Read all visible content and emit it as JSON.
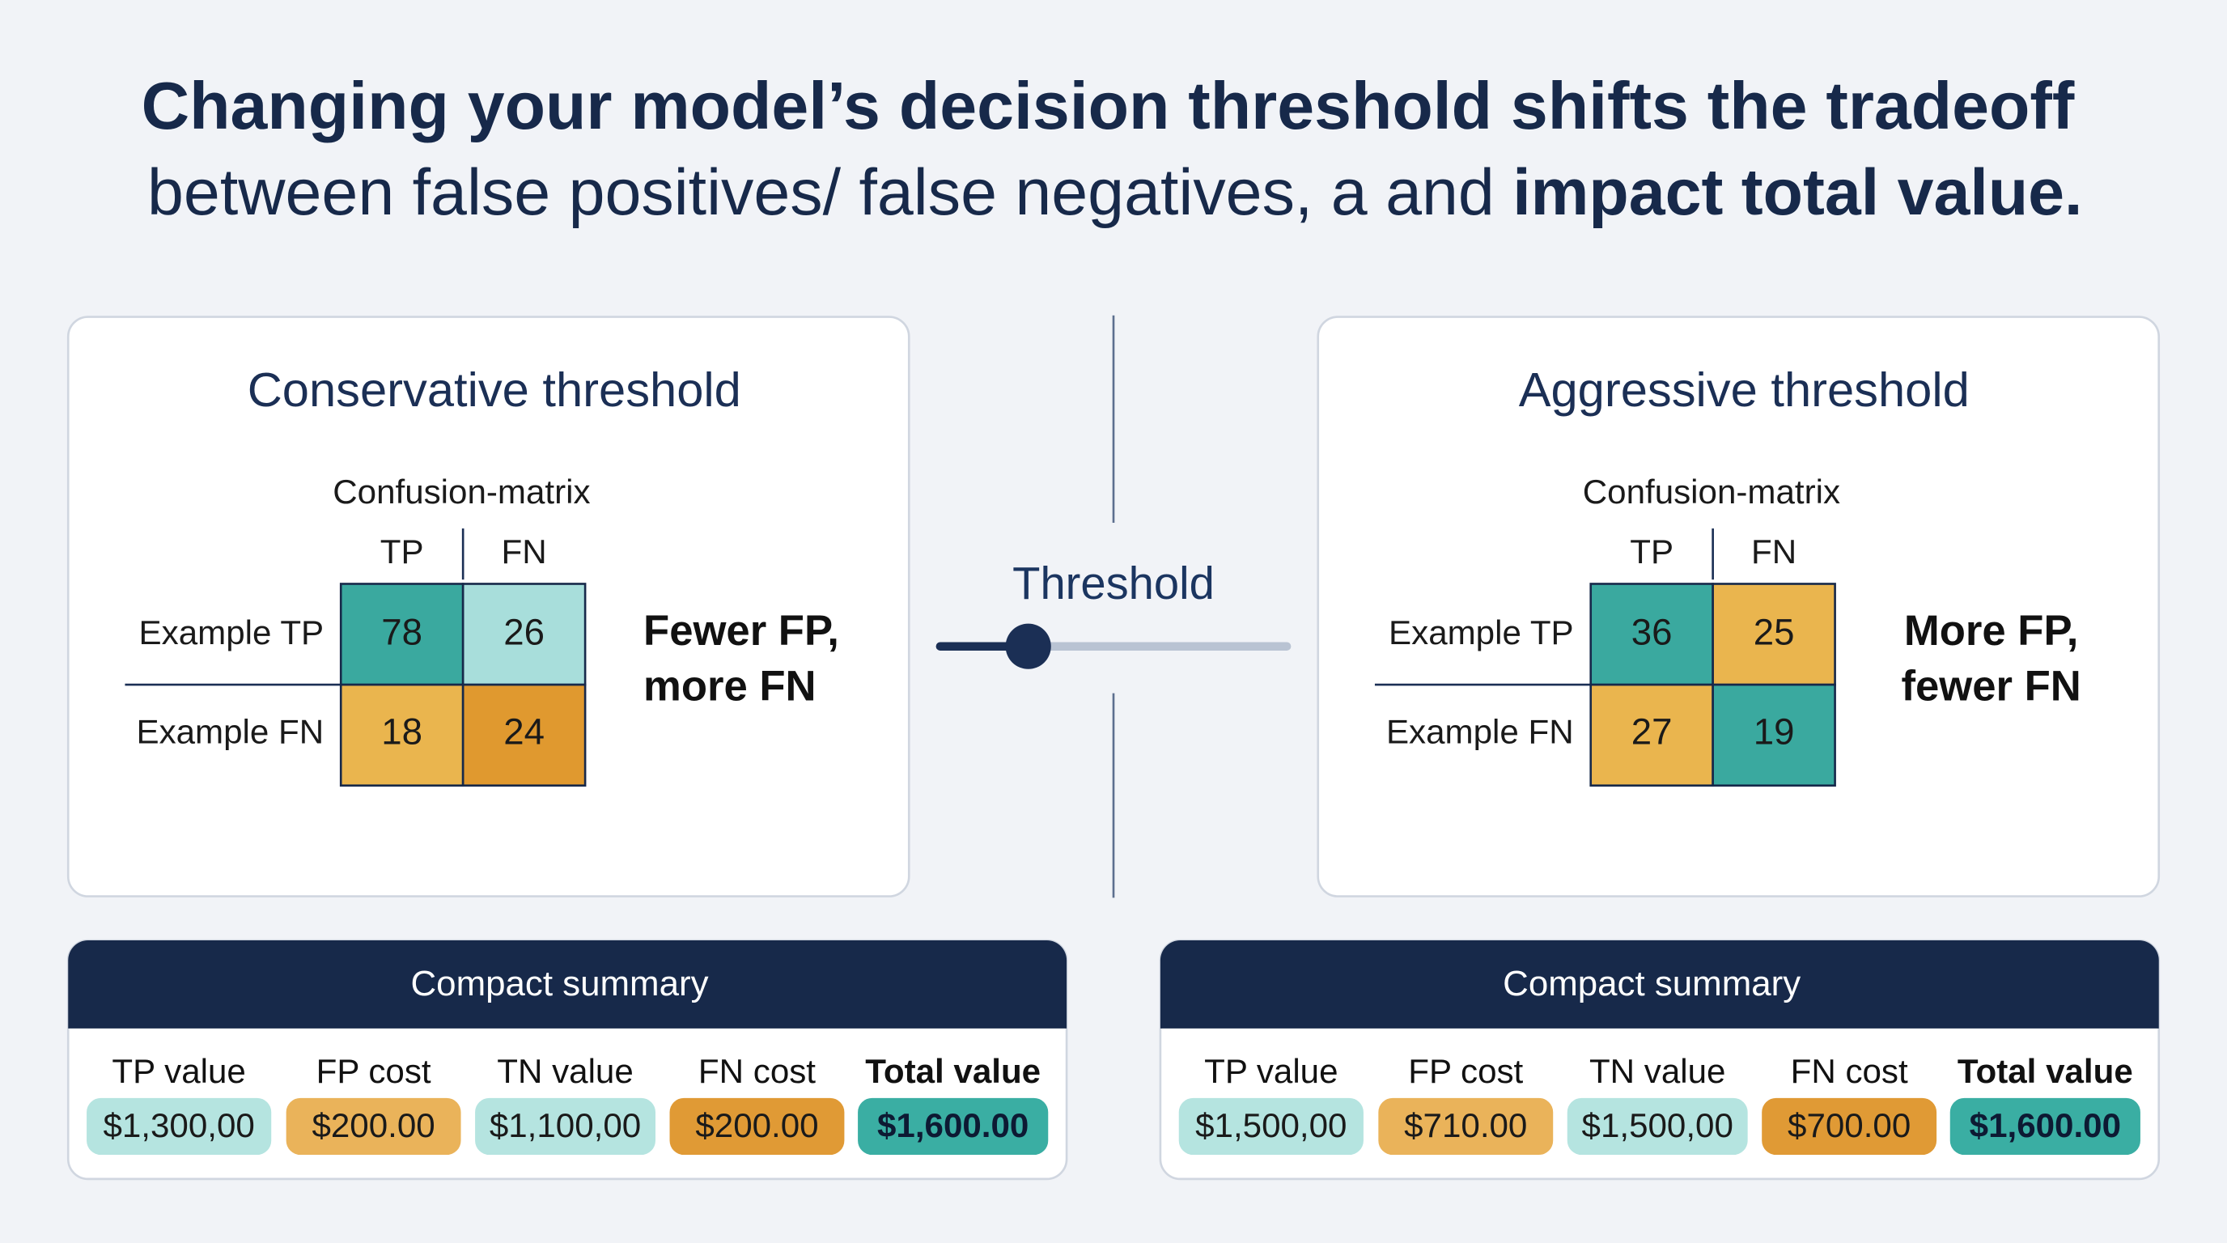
{
  "title": {
    "line1": "Changing your model’s decision threshold shifts the tradeoff",
    "line2_regular": "between false positives/ false negatives, a and ",
    "line2_bold": "impact total value."
  },
  "panels": [
    {
      "title": "Conservative threshold",
      "matrix_label": "Confusion-matrix",
      "col_headers": [
        "TP",
        "FN"
      ],
      "row_headers": [
        "Example TP",
        "Example FN"
      ],
      "cells": [
        [
          "78",
          "26"
        ],
        [
          "18",
          "24"
        ]
      ],
      "note": [
        "Fewer FP,",
        "more FN"
      ]
    },
    {
      "title": "Aggressive threshold",
      "matrix_label": "Confusion-matrix",
      "col_headers": [
        "TP",
        "FN"
      ],
      "row_headers": [
        "Example TP",
        "Example FN"
      ],
      "cells": [
        [
          "36",
          "25"
        ],
        [
          "27",
          "19"
        ]
      ],
      "note": [
        "More FP,",
        "fewer FN"
      ]
    }
  ],
  "slider_label": "Threshold",
  "summaries": [
    {
      "title": "Compact summary",
      "labels": [
        "TP value",
        "FP cost",
        "TN value",
        "FN cost",
        "Total value"
      ],
      "values": [
        "$1,300,00",
        "$200.00",
        "$1,100,00",
        "$200.00",
        "$1,600.00"
      ]
    },
    {
      "title": "Compact summary",
      "labels": [
        "TP value",
        "FP cost",
        "TN value",
        "FN cost",
        "Total value"
      ],
      "values": [
        "$1,500,00",
        "$710.00",
        "$1,500,00",
        "$700.00",
        "$1,600.00"
      ]
    }
  ]
}
